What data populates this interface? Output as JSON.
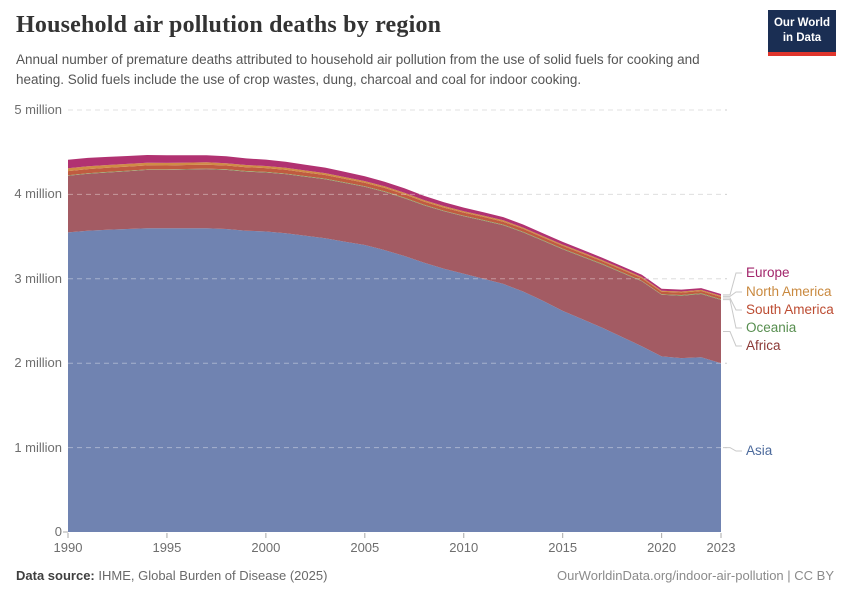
{
  "header": {
    "title": "Household air pollution deaths by region",
    "subtitle": "Annual number of premature deaths attributed to household air pollution from the use of solid fuels for cooking and heating. Solid fuels include the use of crop wastes, dung, charcoal and coal for indoor cooking.",
    "logo": {
      "line1": "Our World",
      "line2": "in Data",
      "bg_color": "#1A2E53",
      "accent_color": "#E0352C"
    }
  },
  "footer": {
    "source_label": "Data source:",
    "source_value": " IHME, Global Burden of Disease (2025)",
    "attribution": "OurWorldinData.org/indoor-air-pollution | CC BY"
  },
  "chart_data": {
    "type": "area",
    "stacked": true,
    "unit": "million deaths",
    "grid": "dashed horizontal",
    "legend_position": "right",
    "legend_order_top_to_bottom": [
      "Europe",
      "North America",
      "South America",
      "Oceania",
      "Africa",
      "Asia"
    ],
    "ylim": [
      0,
      5
    ],
    "y_ticks": [
      {
        "value": 0,
        "label": "0"
      },
      {
        "value": 1,
        "label": "1 million"
      },
      {
        "value": 2,
        "label": "2 million"
      },
      {
        "value": 3,
        "label": "3 million"
      },
      {
        "value": 4,
        "label": "4 million"
      },
      {
        "value": 5,
        "label": "5 million"
      }
    ],
    "x_ticks": [
      1990,
      1995,
      2000,
      2005,
      2010,
      2015,
      2020,
      2023
    ],
    "x": [
      1990,
      1991,
      1992,
      1993,
      1994,
      1995,
      1996,
      1997,
      1998,
      1999,
      2000,
      2001,
      2002,
      2003,
      2004,
      2005,
      2006,
      2007,
      2008,
      2009,
      2010,
      2011,
      2012,
      2013,
      2014,
      2015,
      2016,
      2017,
      2018,
      2019,
      2020,
      2021,
      2022,
      2023
    ],
    "series": [
      {
        "name": "Asia",
        "fill": "#7083B1",
        "label_color": "#4C6A9C",
        "values": [
          3.55,
          3.57,
          3.58,
          3.59,
          3.6,
          3.6,
          3.6,
          3.6,
          3.59,
          3.57,
          3.56,
          3.54,
          3.51,
          3.48,
          3.44,
          3.4,
          3.34,
          3.27,
          3.19,
          3.12,
          3.06,
          3.0,
          2.94,
          2.85,
          2.74,
          2.62,
          2.52,
          2.42,
          2.31,
          2.2,
          2.08,
          2.06,
          2.07,
          2.0
        ]
      },
      {
        "name": "Africa",
        "fill": "#A35B63",
        "label_color": "#8C3936",
        "values": [
          0.67,
          0.675,
          0.68,
          0.685,
          0.69,
          0.69,
          0.695,
          0.7,
          0.7,
          0.7,
          0.7,
          0.7,
          0.7,
          0.7,
          0.695,
          0.69,
          0.69,
          0.685,
          0.68,
          0.68,
          0.68,
          0.69,
          0.695,
          0.7,
          0.71,
          0.73,
          0.74,
          0.75,
          0.76,
          0.77,
          0.73,
          0.74,
          0.75,
          0.75
        ]
      },
      {
        "name": "Oceania",
        "fill": "#86A762",
        "label_color": "#578E4F",
        "values": [
          0.006,
          0.006,
          0.006,
          0.006,
          0.006,
          0.006,
          0.006,
          0.006,
          0.007,
          0.007,
          0.007,
          0.007,
          0.007,
          0.007,
          0.007,
          0.007,
          0.007,
          0.007,
          0.007,
          0.007,
          0.007,
          0.007,
          0.007,
          0.008,
          0.008,
          0.008,
          0.008,
          0.008,
          0.008,
          0.008,
          0.008,
          0.008,
          0.008,
          0.008
        ]
      },
      {
        "name": "South America",
        "fill": "#C05B40",
        "label_color": "#BC4B31",
        "values": [
          0.05,
          0.049,
          0.049,
          0.048,
          0.048,
          0.047,
          0.047,
          0.046,
          0.046,
          0.045,
          0.045,
          0.044,
          0.043,
          0.043,
          0.042,
          0.041,
          0.04,
          0.039,
          0.038,
          0.037,
          0.037,
          0.036,
          0.035,
          0.034,
          0.033,
          0.033,
          0.032,
          0.031,
          0.031,
          0.03,
          0.029,
          0.029,
          0.028,
          0.028
        ]
      },
      {
        "name": "North America",
        "fill": "#D08C46",
        "label_color": "#C9893F",
        "values": [
          0.035,
          0.034,
          0.033,
          0.032,
          0.031,
          0.03,
          0.029,
          0.028,
          0.027,
          0.026,
          0.025,
          0.024,
          0.023,
          0.022,
          0.021,
          0.02,
          0.019,
          0.019,
          0.018,
          0.017,
          0.017,
          0.016,
          0.016,
          0.015,
          0.015,
          0.014,
          0.014,
          0.013,
          0.013,
          0.013,
          0.012,
          0.012,
          0.012,
          0.012
        ]
      },
      {
        "name": "Europe",
        "fill": "#B13271",
        "label_color": "#A2256B",
        "values": [
          0.1,
          0.098,
          0.096,
          0.094,
          0.092,
          0.09,
          0.087,
          0.084,
          0.081,
          0.078,
          0.075,
          0.072,
          0.068,
          0.065,
          0.062,
          0.058,
          0.055,
          0.052,
          0.049,
          0.046,
          0.043,
          0.04,
          0.038,
          0.036,
          0.034,
          0.032,
          0.03,
          0.028,
          0.027,
          0.026,
          0.024,
          0.023,
          0.022,
          0.022
        ]
      }
    ]
  }
}
